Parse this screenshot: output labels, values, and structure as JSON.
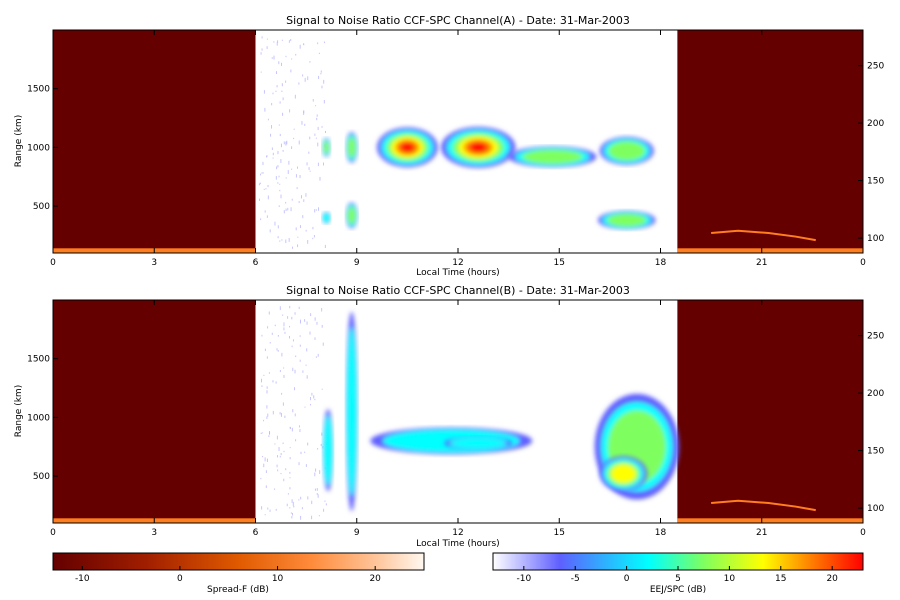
{
  "colors": {
    "spread_f_background": "#640000",
    "spread_f_band": "#ff7f1f",
    "ccf_spc_colormap": [
      "#ffffff",
      "#5f5fff",
      "#00ffff",
      "#7fff5f",
      "#ffff00",
      "#ff7f00",
      "#ff0000"
    ],
    "spreadf_colormap": [
      "#640000",
      "#a01e00",
      "#e05a00",
      "#ff8c3c",
      "#ffc8a0",
      "#fff8f0"
    ]
  },
  "chart_data": [
    {
      "type": "heatmap",
      "title": "Signal to Noise Ratio CCF-SPC Channel(A) - Date: 31-Mar-2003",
      "xlabel": "Local Time (hours)",
      "ylabel": "Range (km)",
      "xlim": [
        0,
        24
      ],
      "ylim": [
        100,
        2000
      ],
      "x_ticks": [
        "0",
        "3",
        "6",
        "9",
        "12",
        "15",
        "18",
        "21",
        "0"
      ],
      "y_ticks": [
        "500",
        "1000",
        "1500"
      ],
      "y2_ticks": [
        "100",
        "150",
        "200",
        "250"
      ],
      "y2lim": [
        87,
        281
      ],
      "night_segments": [
        [
          0,
          6
        ],
        [
          18.5,
          24
        ]
      ],
      "spread_f_band": {
        "range_km": [
          100,
          140
        ],
        "value_db": 12
      },
      "secondary_echo": {
        "x": [
          19.5,
          20.3,
          21.2,
          22.0,
          22.6
        ],
        "range_km": [
          270,
          290,
          270,
          240,
          210
        ]
      },
      "blobs": [
        {
          "x": 8.1,
          "range_km": 1000,
          "w": 0.25,
          "h": 160,
          "peak_db": 3
        },
        {
          "x": 8.85,
          "range_km": 1000,
          "w": 0.35,
          "h": 260,
          "peak_db": 6
        },
        {
          "x": 8.1,
          "range_km": 400,
          "w": 0.25,
          "h": 100,
          "peak_db": 0
        },
        {
          "x": 8.85,
          "range_km": 420,
          "w": 0.35,
          "h": 220,
          "peak_db": 6
        },
        {
          "x": 10.5,
          "range_km": 1000,
          "w": 1.8,
          "h": 340,
          "peak_db": 22
        },
        {
          "x": 12.6,
          "range_km": 1000,
          "w": 2.2,
          "h": 350,
          "peak_db": 22
        },
        {
          "x": 14.8,
          "range_km": 920,
          "w": 2.6,
          "h": 180,
          "peak_db": 5
        },
        {
          "x": 17.0,
          "range_km": 970,
          "w": 1.6,
          "h": 240,
          "peak_db": 7
        },
        {
          "x": 17.0,
          "range_km": 380,
          "w": 1.7,
          "h": 160,
          "peak_db": 3
        }
      ]
    },
    {
      "type": "heatmap",
      "title": "Signal to Noise Ratio CCF-SPC Channel(B) - Date: 31-Mar-2003",
      "xlabel": "Local Time (hours)",
      "ylabel": "Range (km)",
      "xlim": [
        0,
        24
      ],
      "ylim": [
        100,
        2000
      ],
      "x_ticks": [
        "0",
        "3",
        "6",
        "9",
        "12",
        "15",
        "18",
        "21",
        "0"
      ],
      "y_ticks": [
        "500",
        "1000",
        "1500"
      ],
      "y2_ticks": [
        "100",
        "150",
        "200",
        "250"
      ],
      "y2lim": [
        87,
        281
      ],
      "night_segments": [
        [
          0,
          6
        ],
        [
          18.5,
          24
        ]
      ],
      "spread_f_band": {
        "range_km": [
          100,
          140
        ],
        "value_db": 12
      },
      "secondary_echo": {
        "x": [
          19.5,
          20.3,
          21.2,
          22.0,
          22.6
        ],
        "range_km": [
          270,
          290,
          270,
          240,
          210
        ]
      },
      "blobs": [
        {
          "x": 8.15,
          "range_km": 720,
          "w": 0.3,
          "h": 700,
          "peak_db": 2
        },
        {
          "x": 8.85,
          "range_km": 1050,
          "w": 0.35,
          "h": 1700,
          "peak_db": 0
        },
        {
          "x": 11.8,
          "range_km": 800,
          "w": 4.8,
          "h": 230,
          "peak_db": 0
        },
        {
          "x": 12.6,
          "range_km": 780,
          "w": 2.0,
          "h": 110,
          "peak_db": 2
        },
        {
          "x": 17.3,
          "range_km": 750,
          "w": 2.5,
          "h": 900,
          "peak_db": 3
        },
        {
          "x": 16.9,
          "range_km": 520,
          "w": 1.4,
          "h": 300,
          "peak_db": 10
        }
      ]
    }
  ],
  "colorbars": [
    {
      "label": "Spread-F (dB)",
      "range": [
        -13,
        25
      ],
      "ticks": [
        "-10",
        "0",
        "10",
        "20"
      ],
      "tick_values": [
        -10,
        0,
        10,
        20
      ]
    },
    {
      "label": "EEJ/SPC (dB)",
      "range": [
        -13,
        23
      ],
      "ticks": [
        "-10",
        "-5",
        "0",
        "5",
        "10",
        "15",
        "20"
      ],
      "tick_values": [
        -10,
        -5,
        0,
        5,
        10,
        15,
        20
      ]
    }
  ]
}
